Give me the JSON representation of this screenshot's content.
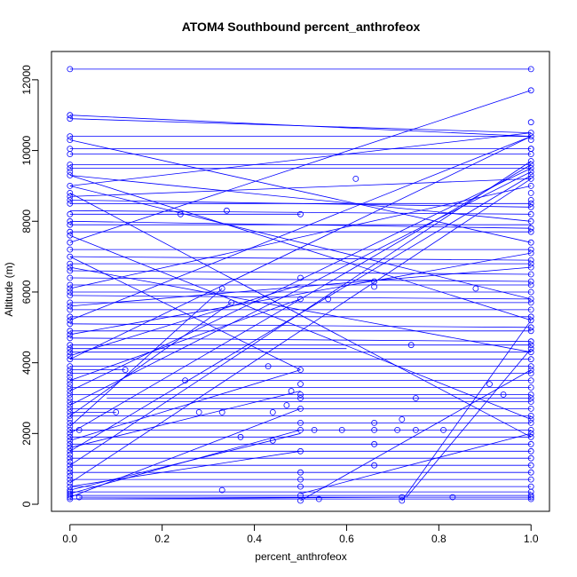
{
  "chart_data": {
    "type": "line",
    "title": "ATOM4 Southbound percent_anthrofeox",
    "xlabel": "percent_anthrofeox",
    "ylabel": "Altitude (m)",
    "xlim": [
      -0.04,
      1.04
    ],
    "ylim": [
      -200,
      12800
    ],
    "x_ticks": [
      0.0,
      0.2,
      0.4,
      0.6,
      0.8,
      1.0
    ],
    "x_tick_labels": [
      "0.0",
      "0.2",
      "0.4",
      "0.6",
      "0.8",
      "1.0"
    ],
    "y_ticks": [
      0,
      2000,
      4000,
      6000,
      8000,
      10000,
      12000
    ],
    "y_tick_labels": [
      "0",
      "2000",
      "4000",
      "6000",
      "8000",
      "10000",
      "12000"
    ],
    "series_color": "#0000ff",
    "marker": "open-circle",
    "frame_color": "#000000",
    "segments": [
      [
        0,
        12300,
        1,
        12300
      ],
      [
        0,
        11000,
        1,
        10400
      ],
      [
        0,
        10400,
        1,
        10400
      ],
      [
        0,
        10050,
        1,
        10050
      ],
      [
        0,
        9600,
        1,
        9600
      ],
      [
        0,
        9500,
        1,
        9500
      ],
      [
        0,
        9300,
        1,
        8000
      ],
      [
        0,
        9000,
        1,
        10500
      ],
      [
        0,
        8700,
        1,
        9200
      ],
      [
        0,
        8500,
        1,
        8500
      ],
      [
        0,
        8300,
        1,
        8200
      ],
      [
        0,
        8200,
        0.5,
        8200
      ],
      [
        0,
        8000,
        1,
        7800
      ],
      [
        0,
        7700,
        1,
        7700
      ],
      [
        0,
        7400,
        1,
        11700
      ],
      [
        0,
        7200,
        1,
        7200
      ],
      [
        0,
        7000,
        1,
        6900
      ],
      [
        0,
        6800,
        1,
        6800
      ],
      [
        0,
        6600,
        1,
        6500
      ],
      [
        0,
        6400,
        1,
        6300
      ],
      [
        0,
        6200,
        1,
        6200
      ],
      [
        0,
        6000,
        1,
        6000
      ],
      [
        0,
        5900,
        1,
        5800
      ],
      [
        0,
        5700,
        1,
        5700
      ],
      [
        0,
        5500,
        1,
        5500
      ],
      [
        0,
        5300,
        1,
        5300
      ],
      [
        0,
        5100,
        1,
        5000
      ],
      [
        0,
        4900,
        1,
        4900
      ],
      [
        0,
        4700,
        1,
        4600
      ],
      [
        0,
        4500,
        1,
        4500
      ],
      [
        0,
        4300,
        1,
        4300
      ],
      [
        0,
        4100,
        1,
        4100
      ],
      [
        0,
        3900,
        1,
        3900
      ],
      [
        0,
        3700,
        1,
        3700
      ],
      [
        0,
        3500,
        1,
        3500
      ],
      [
        0,
        3300,
        1,
        3300
      ],
      [
        0,
        3100,
        1,
        3100
      ],
      [
        0,
        2900,
        1,
        2900
      ],
      [
        0,
        2700,
        1,
        2700
      ],
      [
        0,
        2500,
        1,
        2500
      ],
      [
        0,
        2300,
        1,
        2300
      ],
      [
        0,
        2100,
        1,
        2100
      ],
      [
        0,
        1900,
        1,
        1900
      ],
      [
        0,
        1700,
        1,
        1700
      ],
      [
        0,
        1500,
        1,
        1500
      ],
      [
        0,
        1300,
        1,
        1300
      ],
      [
        0,
        1100,
        1,
        1100
      ],
      [
        0,
        900,
        1,
        900
      ],
      [
        0,
        700,
        1,
        700
      ],
      [
        0,
        500,
        1,
        500
      ],
      [
        0,
        350,
        1,
        350
      ],
      [
        0,
        250,
        1,
        250
      ],
      [
        0,
        150,
        1,
        150
      ],
      [
        0,
        3200,
        1,
        9500
      ],
      [
        0,
        2800,
        1,
        9400
      ],
      [
        0,
        2000,
        1,
        9600
      ],
      [
        0,
        1500,
        1,
        9300
      ],
      [
        0,
        1100,
        1,
        9700
      ],
      [
        0,
        600,
        1,
        9200
      ],
      [
        0,
        4100,
        1,
        10400
      ],
      [
        0,
        5200,
        1,
        10400
      ],
      [
        0,
        6100,
        1,
        9000
      ],
      [
        0,
        3500,
        0.5,
        5800
      ],
      [
        0,
        4200,
        0.5,
        6200
      ],
      [
        0,
        2500,
        0.35,
        5700
      ],
      [
        0,
        2200,
        0.33,
        6100
      ],
      [
        0,
        1800,
        0.5,
        3800
      ],
      [
        0,
        300,
        0.5,
        2100
      ],
      [
        0,
        500,
        0.5,
        1500
      ],
      [
        0,
        9300,
        1,
        5200
      ],
      [
        0,
        9000,
        1,
        5800
      ],
      [
        0,
        8800,
        1,
        1900
      ],
      [
        0,
        7600,
        1,
        2400
      ],
      [
        0,
        7000,
        0.5,
        3800
      ],
      [
        0,
        10300,
        1,
        7400
      ],
      [
        0,
        150,
        0.73,
        200
      ],
      [
        0,
        200,
        0.5,
        2700
      ],
      [
        0,
        400,
        0.5,
        2000
      ],
      [
        0.72,
        100,
        1,
        5200
      ],
      [
        0.5,
        100,
        1,
        3800
      ],
      [
        0.73,
        200,
        1,
        4400
      ],
      [
        0.5,
        300,
        1,
        2000
      ],
      [
        0,
        2100,
        0.15,
        2100
      ],
      [
        0,
        3800,
        0.12,
        3800
      ],
      [
        0,
        2600,
        0.1,
        2600
      ],
      [
        0.08,
        3000,
        1,
        3000
      ],
      [
        0.02,
        200,
        1,
        200
      ],
      [
        0,
        4800,
        1,
        7100
      ],
      [
        0,
        5600,
        1,
        6700
      ],
      [
        0,
        6700,
        1,
        4300
      ],
      [
        0,
        7900,
        1,
        7900
      ],
      [
        0,
        8600,
        1,
        8400
      ],
      [
        0,
        9900,
        1,
        9900
      ],
      [
        0,
        10900,
        1,
        10500
      ],
      [
        0,
        4400,
        0.6,
        4400
      ],
      [
        0,
        1600,
        0.5,
        3200
      ]
    ],
    "points": [
      [
        0,
        12300
      ],
      [
        1,
        12300
      ],
      [
        0,
        11000
      ],
      [
        1,
        11700
      ],
      [
        0,
        10400
      ],
      [
        1,
        10400
      ],
      [
        1,
        10500
      ],
      [
        1,
        10800
      ],
      [
        0,
        10050
      ],
      [
        1,
        10050
      ],
      [
        0,
        9600
      ],
      [
        1,
        9600
      ],
      [
        0,
        9500
      ],
      [
        0,
        9400
      ],
      [
        0,
        9300
      ],
      [
        0,
        9000
      ],
      [
        1,
        9200
      ],
      [
        0,
        8700
      ],
      [
        0.62,
        9200
      ],
      [
        0,
        8500
      ],
      [
        0.34,
        8300
      ],
      [
        0.24,
        8200
      ],
      [
        0.5,
        8200
      ],
      [
        0,
        8200
      ],
      [
        0,
        8000
      ],
      [
        1,
        8000
      ],
      [
        0,
        7700
      ],
      [
        1,
        7700
      ],
      [
        0,
        7400
      ],
      [
        0,
        7200
      ],
      [
        0,
        7000
      ],
      [
        0,
        6800
      ],
      [
        0,
        6600
      ],
      [
        0,
        6400
      ],
      [
        0.5,
        6400
      ],
      [
        0.66,
        6300
      ],
      [
        0.66,
        6150
      ],
      [
        0.88,
        6100
      ],
      [
        0.33,
        6100
      ],
      [
        0,
        6200
      ],
      [
        0,
        6000
      ],
      [
        0,
        5900
      ],
      [
        0.5,
        5800
      ],
      [
        0.56,
        5800
      ],
      [
        0.35,
        5700
      ],
      [
        0,
        5700
      ],
      [
        0,
        5500
      ],
      [
        0,
        5300
      ],
      [
        0,
        5100
      ],
      [
        0,
        4900
      ],
      [
        0,
        4700
      ],
      [
        0.74,
        4500
      ],
      [
        0,
        4500
      ],
      [
        0,
        4300
      ],
      [
        0,
        4100
      ],
      [
        0,
        3900
      ],
      [
        0.43,
        3900
      ],
      [
        0.5,
        3800
      ],
      [
        0.12,
        3800
      ],
      [
        0,
        3700
      ],
      [
        0.25,
        3500
      ],
      [
        0,
        3500
      ],
      [
        0.5,
        3400
      ],
      [
        0.91,
        3400
      ],
      [
        0,
        3300
      ],
      [
        0.48,
        3200
      ],
      [
        0.5,
        3100
      ],
      [
        0.94,
        3100
      ],
      [
        0,
        3100
      ],
      [
        0.75,
        3000
      ],
      [
        0.5,
        3000
      ],
      [
        0,
        2900
      ],
      [
        0.47,
        2800
      ],
      [
        0.5,
        2700
      ],
      [
        0,
        2700
      ],
      [
        0.33,
        2600
      ],
      [
        0.28,
        2600
      ],
      [
        0.1,
        2600
      ],
      [
        0.44,
        2600
      ],
      [
        0,
        2500
      ],
      [
        0.72,
        2400
      ],
      [
        0.66,
        2300
      ],
      [
        0.5,
        2300
      ],
      [
        0,
        2300
      ],
      [
        0.5,
        2100
      ],
      [
        0.75,
        2100
      ],
      [
        0.66,
        2100
      ],
      [
        0.71,
        2100
      ],
      [
        0.81,
        2100
      ],
      [
        0.53,
        2100
      ],
      [
        0,
        2100
      ],
      [
        0.02,
        2100
      ],
      [
        0.59,
        2100
      ],
      [
        0.37,
        1900
      ],
      [
        0.44,
        1800
      ],
      [
        0,
        1900
      ],
      [
        0,
        1700
      ],
      [
        0.66,
        1700
      ],
      [
        0.5,
        1500
      ],
      [
        0,
        1500
      ],
      [
        0,
        1300
      ],
      [
        0.66,
        1100
      ],
      [
        0,
        1100
      ],
      [
        0,
        900
      ],
      [
        0.5,
        900
      ],
      [
        0,
        700
      ],
      [
        0.5,
        700
      ],
      [
        0,
        500
      ],
      [
        0.5,
        500
      ],
      [
        0.33,
        400
      ],
      [
        0,
        350
      ],
      [
        0,
        250
      ],
      [
        0.5,
        250
      ],
      [
        0.72,
        200
      ],
      [
        0.83,
        200
      ],
      [
        0.02,
        200
      ],
      [
        0.54,
        150
      ],
      [
        0,
        150
      ],
      [
        0.5,
        100
      ],
      [
        0.72,
        100
      ],
      [
        1,
        9700
      ],
      [
        1,
        9500
      ],
      [
        1,
        9400
      ],
      [
        1,
        9300
      ],
      [
        1,
        9000
      ],
      [
        1,
        8800
      ],
      [
        1,
        8500
      ],
      [
        1,
        8400
      ],
      [
        1,
        8200
      ],
      [
        1,
        7800
      ],
      [
        1,
        7400
      ],
      [
        1,
        7200
      ],
      [
        1,
        7100
      ],
      [
        1,
        6900
      ],
      [
        1,
        6800
      ],
      [
        1,
        6700
      ],
      [
        1,
        6500
      ],
      [
        1,
        6300
      ],
      [
        1,
        6200
      ],
      [
        1,
        6000
      ],
      [
        1,
        5800
      ],
      [
        1,
        5700
      ],
      [
        1,
        5500
      ],
      [
        1,
        5300
      ],
      [
        1,
        5200
      ],
      [
        1,
        5000
      ],
      [
        1,
        4900
      ],
      [
        1,
        4600
      ],
      [
        1,
        4500
      ],
      [
        1,
        4400
      ],
      [
        1,
        4300
      ],
      [
        1,
        4100
      ],
      [
        1,
        3900
      ],
      [
        1,
        3800
      ],
      [
        1,
        3700
      ],
      [
        1,
        3500
      ],
      [
        1,
        3300
      ],
      [
        1,
        3100
      ],
      [
        1,
        3000
      ],
      [
        1,
        2900
      ],
      [
        1,
        2700
      ],
      [
        1,
        2500
      ],
      [
        1,
        2400
      ],
      [
        1,
        2300
      ],
      [
        1,
        2100
      ],
      [
        1,
        2000
      ],
      [
        1,
        1900
      ],
      [
        1,
        1700
      ],
      [
        1,
        1500
      ],
      [
        1,
        1300
      ],
      [
        1,
        1100
      ],
      [
        1,
        900
      ],
      [
        1,
        700
      ],
      [
        1,
        500
      ],
      [
        1,
        350
      ],
      [
        1,
        250
      ],
      [
        1,
        200
      ],
      [
        1,
        150
      ],
      [
        0,
        6100
      ],
      [
        0,
        5600
      ],
      [
        0,
        5200
      ],
      [
        0,
        4800
      ],
      [
        0,
        4400
      ],
      [
        0,
        4200
      ],
      [
        0,
        3800
      ],
      [
        0,
        3600
      ],
      [
        0,
        3400
      ],
      [
        0,
        3200
      ],
      [
        0,
        3000
      ],
      [
        0,
        2800
      ],
      [
        0,
        2600
      ],
      [
        0,
        2400
      ],
      [
        0,
        2200
      ],
      [
        0,
        2000
      ],
      [
        0,
        1800
      ],
      [
        0,
        1600
      ],
      [
        0,
        1400
      ],
      [
        0,
        1200
      ],
      [
        0,
        1000
      ],
      [
        0,
        800
      ],
      [
        0,
        600
      ],
      [
        0,
        400
      ],
      [
        0,
        300
      ],
      [
        0,
        200
      ],
      [
        0,
        9900
      ],
      [
        0,
        10900
      ],
      [
        0,
        8800
      ],
      [
        0,
        8600
      ],
      [
        0,
        7900
      ],
      [
        0,
        7600
      ],
      [
        0,
        6700
      ],
      [
        0,
        10300
      ],
      [
        1,
        9900
      ],
      [
        1,
        10050
      ],
      [
        1,
        10300
      ],
      [
        1,
        8600
      ]
    ]
  }
}
